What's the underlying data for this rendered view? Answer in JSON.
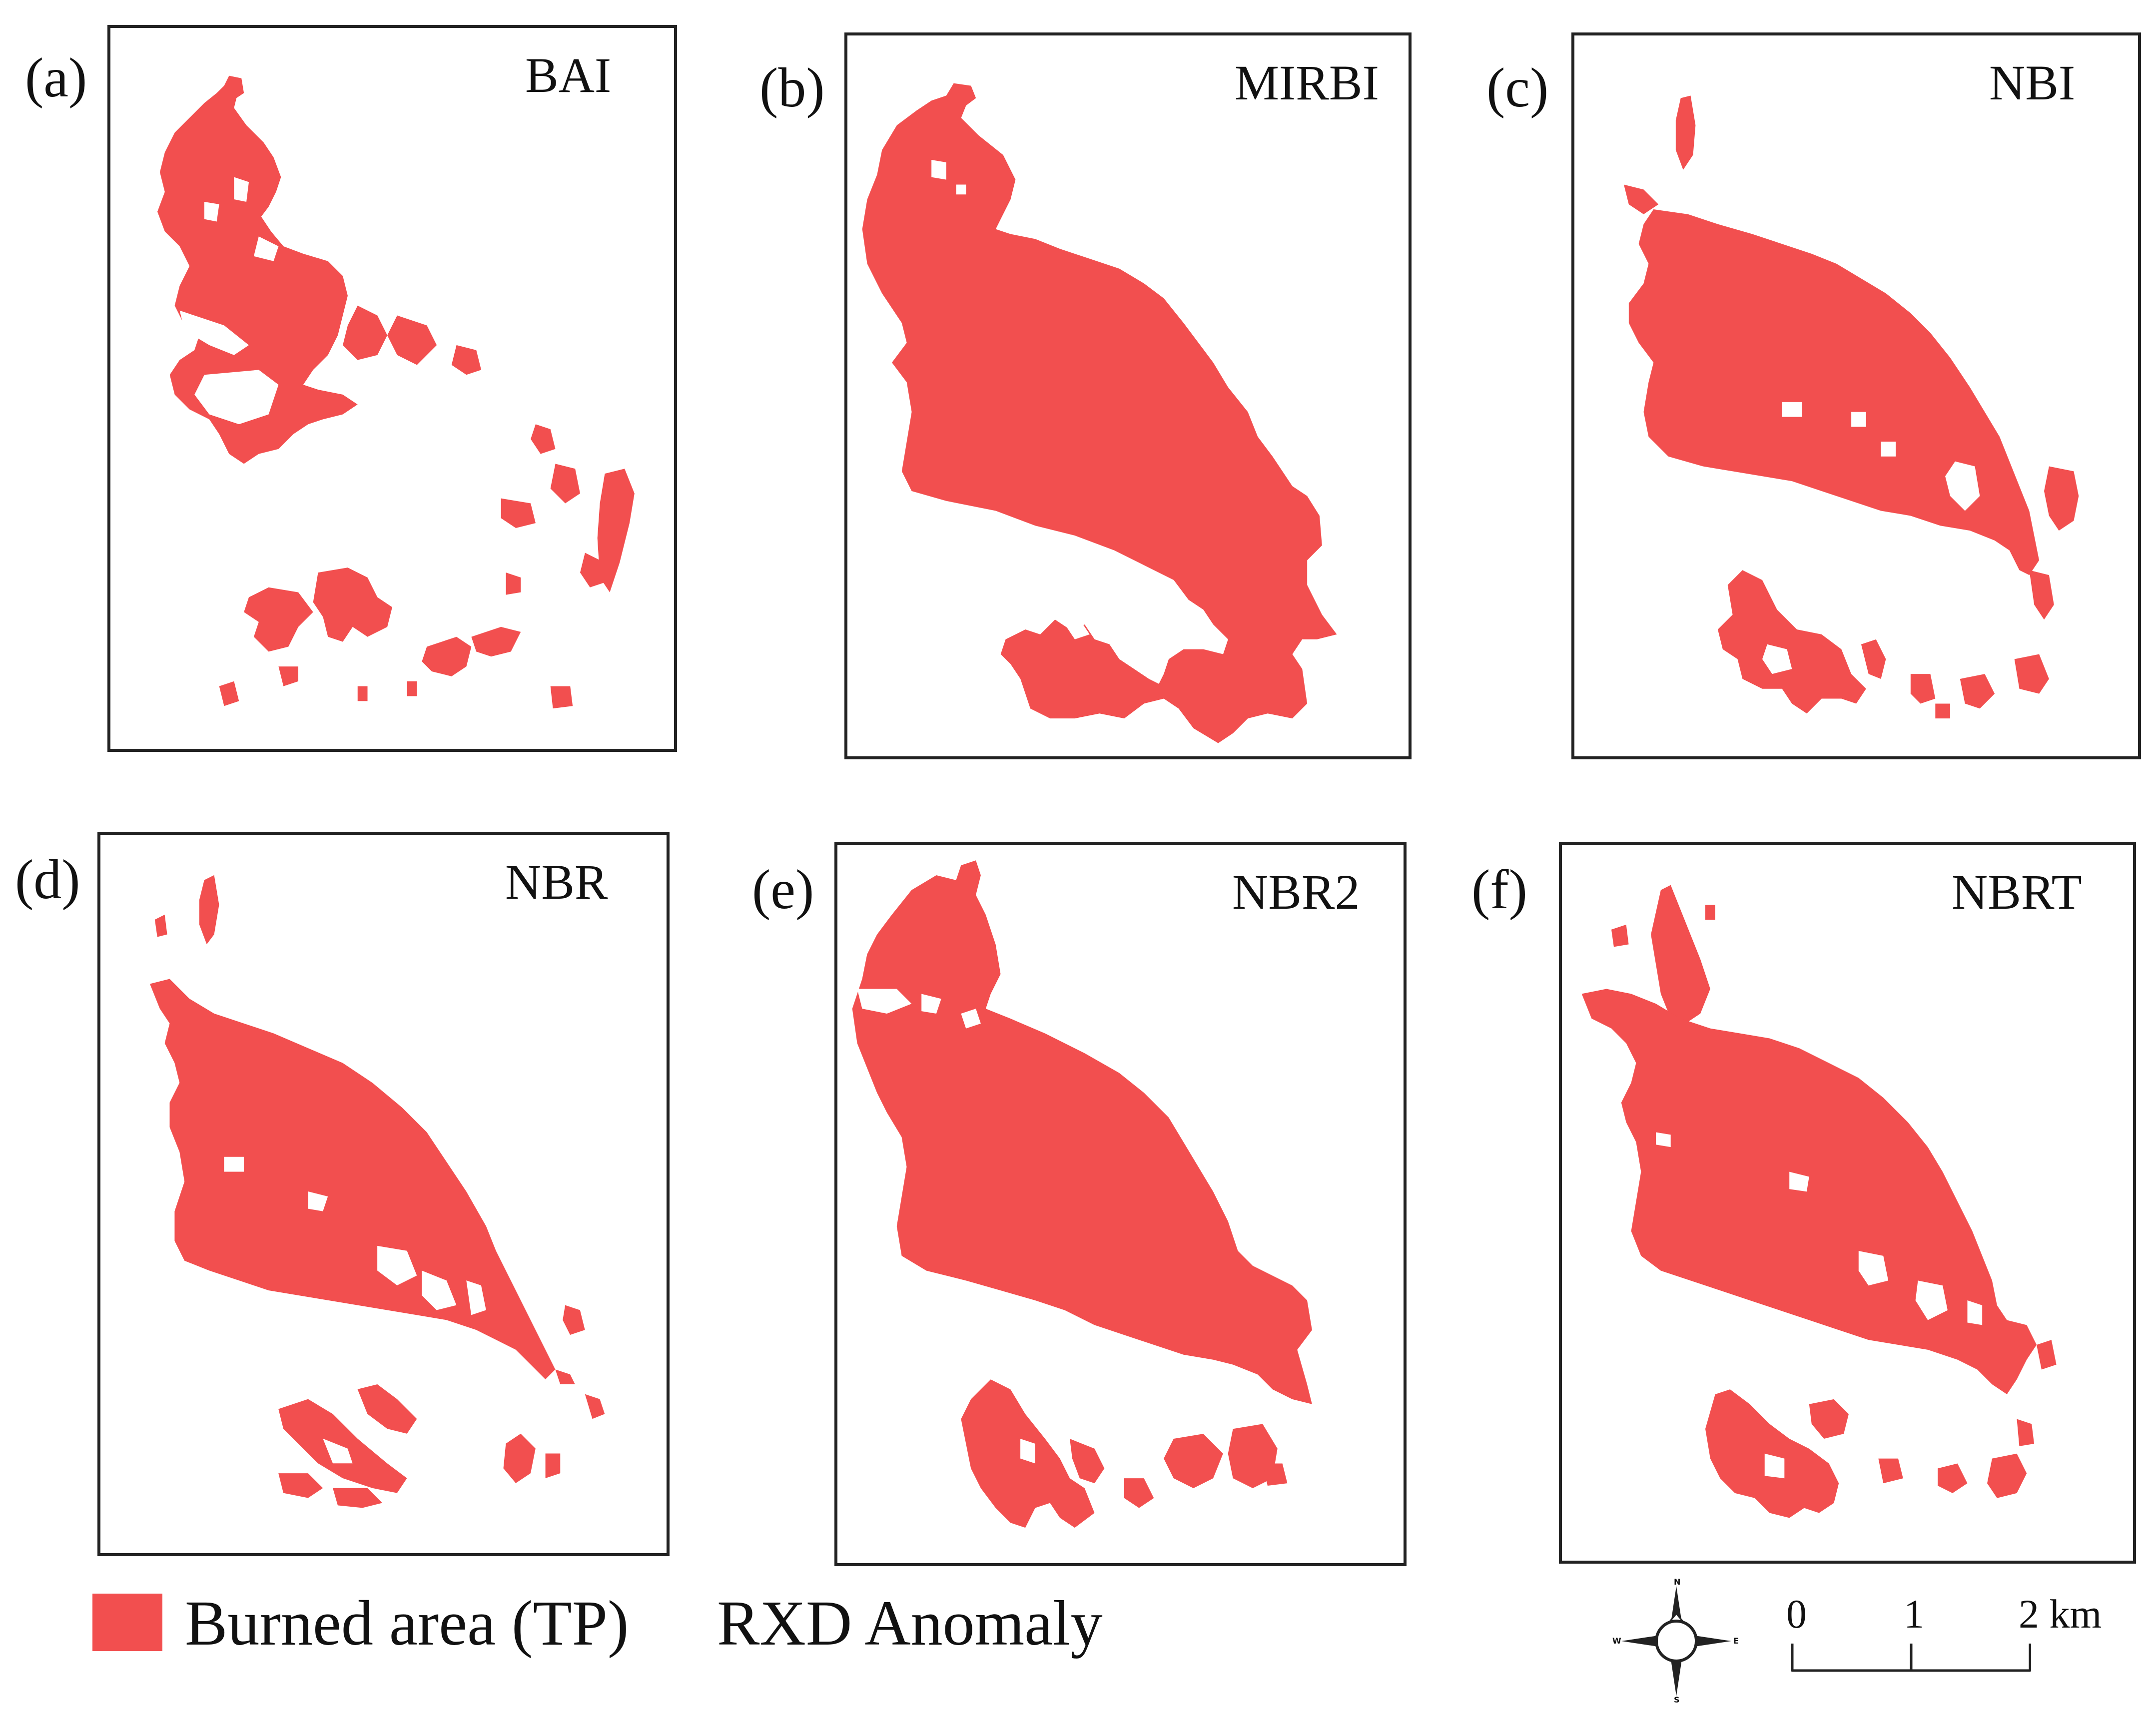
{
  "colors": {
    "burned": "#f24f4f",
    "frame": "#222222",
    "text": "#111111"
  },
  "panels": [
    {
      "letter": "(a)",
      "index": "BAI"
    },
    {
      "letter": "(b)",
      "index": "MIRBI"
    },
    {
      "letter": "(c)",
      "index": "NBI"
    },
    {
      "letter": "(d)",
      "index": "NBR"
    },
    {
      "letter": "(e)",
      "index": "NBR2"
    },
    {
      "letter": "(f)",
      "index": "NBRT"
    }
  ],
  "legend": {
    "label": "Burned area (TP)",
    "method": "RXD Anomaly"
  },
  "compass": {
    "n": "N",
    "s": "S",
    "e": "E",
    "w": "W"
  },
  "scale": {
    "ticks": [
      "0",
      "1",
      "2 km"
    ]
  }
}
